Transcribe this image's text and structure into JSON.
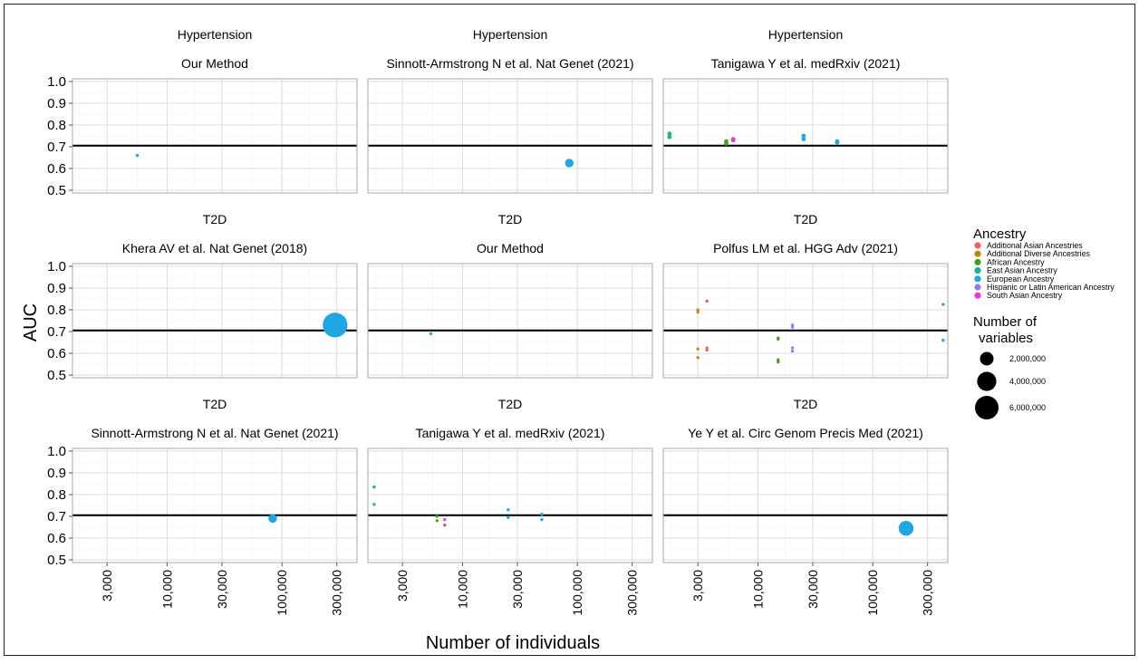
{
  "colors": {
    "Additional Asian Ancestries": "#F0645E",
    "Additional Diverse Ancestries": "#B58A13",
    "African Ancestry": "#46A312",
    "East Asian Ancestry": "#16B887",
    "European Ancestry": "#20A7E3",
    "Hispanic or Latin American Ancestry": "#9D78F2",
    "South Asian Ancestry": "#EA3BCF"
  },
  "axes": {
    "xlabel": "Number of individuals",
    "ylabel": "AUC",
    "x_ticks": [
      3000,
      10000,
      30000,
      100000,
      300000
    ],
    "x_tick_labels": [
      "3,000",
      "10,000",
      "30,000",
      "100,000",
      "300,000"
    ],
    "y_ticks": [
      0.5,
      0.6,
      0.7,
      0.8,
      0.9,
      1.0
    ],
    "y_tick_labels": [
      "0.5",
      "0.6",
      "0.7",
      "0.8",
      "0.9",
      "1.0"
    ]
  },
  "legend": {
    "ancestry_title": "Ancestry",
    "ancestry_items": [
      "Additional Asian Ancestries",
      "Additional Diverse Ancestries",
      "African Ancestry",
      "East Asian Ancestry",
      "European Ancestry",
      "Hispanic or Latin American Ancestry",
      "South Asian Ancestry"
    ],
    "size_title_line1": "Number of",
    "size_title_line2": "variables",
    "size_items": [
      {
        "label": "2,000,000",
        "value": 2000000
      },
      {
        "label": "4,000,000",
        "value": 4000000
      },
      {
        "label": "6,000,000",
        "value": 6000000
      }
    ]
  },
  "chart_data": {
    "type": "scatter",
    "x_scale": "log10",
    "xlim": [
      1500,
      450000
    ],
    "ylim": [
      0.5,
      1.0
    ],
    "reference_line_y": 0.705,
    "grid": true,
    "legend_placement": "right",
    "panels": [
      {
        "trait": "Hypertension",
        "source": "Our Method",
        "points": [
          {
            "x": 5500,
            "y": 0.66,
            "ancestry": "European Ancestry",
            "variables": 100000
          }
        ]
      },
      {
        "trait": "Hypertension",
        "source": "Sinnott-Armstrong N et al. Nat Genet (2021)",
        "points": [
          {
            "x": 85000,
            "y": 0.625,
            "ancestry": "European Ancestry",
            "variables": 800000
          }
        ]
      },
      {
        "trait": "Hypertension",
        "source": "Tanigawa Y et al. medRxiv (2021)",
        "points": [
          {
            "x": 1700,
            "y": 0.76,
            "ancestry": "East Asian Ancestry",
            "variables": 200000
          },
          {
            "x": 1700,
            "y": 0.745,
            "ancestry": "East Asian Ancestry",
            "variables": 200000
          },
          {
            "x": 5300,
            "y": 0.725,
            "ancestry": "African Ancestry",
            "variables": 200000
          },
          {
            "x": 5300,
            "y": 0.715,
            "ancestry": "African Ancestry",
            "variables": 200000
          },
          {
            "x": 6100,
            "y": 0.735,
            "ancestry": "South Asian Ancestry",
            "variables": 200000
          },
          {
            "x": 6100,
            "y": 0.73,
            "ancestry": "South Asian Ancestry",
            "variables": 200000
          },
          {
            "x": 25000,
            "y": 0.75,
            "ancestry": "European Ancestry",
            "variables": 200000
          },
          {
            "x": 25000,
            "y": 0.735,
            "ancestry": "European Ancestry",
            "variables": 200000
          },
          {
            "x": 49000,
            "y": 0.725,
            "ancestry": "European Ancestry",
            "variables": 200000
          },
          {
            "x": 49000,
            "y": 0.72,
            "ancestry": "European Ancestry",
            "variables": 200000
          }
        ]
      },
      {
        "trait": "T2D",
        "source": "Khera AV et al. Nat Genet (2018)",
        "points": [
          {
            "x": 290000,
            "y": 0.73,
            "ancestry": "European Ancestry",
            "variables": 6600000
          }
        ]
      },
      {
        "trait": "T2D",
        "source": "Our Method",
        "points": [
          {
            "x": 5300,
            "y": 0.69,
            "ancestry": "European Ancestry",
            "variables": 100000
          }
        ]
      },
      {
        "trait": "T2D",
        "source": "Polfus LM et al. HGG Adv (2021)",
        "points": [
          {
            "x": 3600,
            "y": 0.84,
            "ancestry": "Additional Asian Ancestries",
            "variables": 100000
          },
          {
            "x": 3600,
            "y": 0.625,
            "ancestry": "Additional Asian Ancestries",
            "variables": 100000
          },
          {
            "x": 3600,
            "y": 0.615,
            "ancestry": "Additional Asian Ancestries",
            "variables": 100000
          },
          {
            "x": 3000,
            "y": 0.8,
            "ancestry": "Additional Diverse Ancestries",
            "variables": 100000
          },
          {
            "x": 3000,
            "y": 0.79,
            "ancestry": "Additional Diverse Ancestries",
            "variables": 100000
          },
          {
            "x": 3000,
            "y": 0.62,
            "ancestry": "Additional Diverse Ancestries",
            "variables": 100000
          },
          {
            "x": 3000,
            "y": 0.58,
            "ancestry": "Additional Diverse Ancestries",
            "variables": 100000
          },
          {
            "x": 15000,
            "y": 0.67,
            "ancestry": "African Ancestry",
            "variables": 100000
          },
          {
            "x": 15000,
            "y": 0.665,
            "ancestry": "African Ancestry",
            "variables": 100000
          },
          {
            "x": 15000,
            "y": 0.57,
            "ancestry": "African Ancestry",
            "variables": 100000
          },
          {
            "x": 15000,
            "y": 0.56,
            "ancestry": "African Ancestry",
            "variables": 100000
          },
          {
            "x": 20000,
            "y": 0.73,
            "ancestry": "Hispanic or Latin American Ancestry",
            "variables": 100000
          },
          {
            "x": 20000,
            "y": 0.72,
            "ancestry": "Hispanic or Latin American Ancestry",
            "variables": 100000
          },
          {
            "x": 20000,
            "y": 0.625,
            "ancestry": "Hispanic or Latin American Ancestry",
            "variables": 100000
          },
          {
            "x": 20000,
            "y": 0.61,
            "ancestry": "Hispanic or Latin American Ancestry",
            "variables": 100000
          },
          {
            "x": 410000,
            "y": 0.825,
            "ancestry": "European Ancestry",
            "variables": 100000
          },
          {
            "x": 410000,
            "y": 0.66,
            "ancestry": "European Ancestry",
            "variables": 100000
          }
        ]
      },
      {
        "trait": "T2D",
        "source": "Sinnott-Armstrong N et al. Nat Genet (2021)",
        "points": [
          {
            "x": 83000,
            "y": 0.69,
            "ancestry": "European Ancestry",
            "variables": 800000
          }
        ]
      },
      {
        "trait": "T2D",
        "source": "Tanigawa Y et al. medRxiv (2021)",
        "points": [
          {
            "x": 1700,
            "y": 0.835,
            "ancestry": "East Asian Ancestry",
            "variables": 100000
          },
          {
            "x": 1700,
            "y": 0.755,
            "ancestry": "East Asian Ancestry",
            "variables": 100000
          },
          {
            "x": 6000,
            "y": 0.7,
            "ancestry": "African Ancestry",
            "variables": 100000
          },
          {
            "x": 6000,
            "y": 0.68,
            "ancestry": "African Ancestry",
            "variables": 100000
          },
          {
            "x": 7000,
            "y": 0.685,
            "ancestry": "South Asian Ancestry",
            "variables": 100000
          },
          {
            "x": 7000,
            "y": 0.66,
            "ancestry": "South Asian Ancestry",
            "variables": 100000
          },
          {
            "x": 25000,
            "y": 0.73,
            "ancestry": "European Ancestry",
            "variables": 100000
          },
          {
            "x": 25000,
            "y": 0.695,
            "ancestry": "European Ancestry",
            "variables": 100000
          },
          {
            "x": 49000,
            "y": 0.71,
            "ancestry": "European Ancestry",
            "variables": 100000
          },
          {
            "x": 49000,
            "y": 0.685,
            "ancestry": "European Ancestry",
            "variables": 100000
          }
        ]
      },
      {
        "trait": "T2D",
        "source": "Ye Y et al. Circ Genom Precis Med (2021)",
        "points": [
          {
            "x": 195000,
            "y": 0.645,
            "ancestry": "European Ancestry",
            "variables": 2400000
          }
        ]
      }
    ]
  }
}
